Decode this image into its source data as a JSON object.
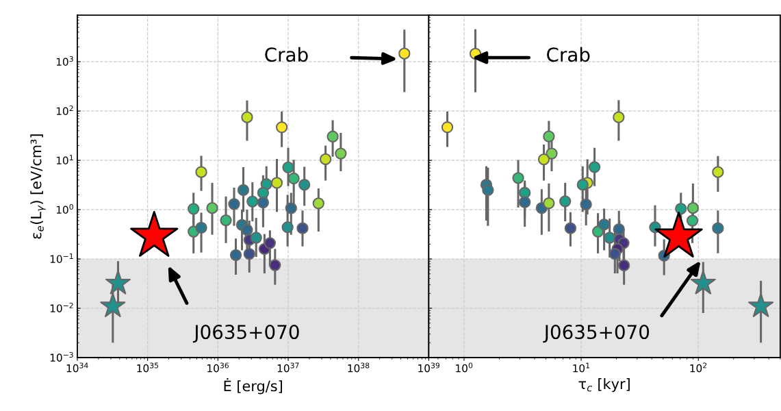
{
  "chart_data": [
    {
      "type": "scatter",
      "xlabel": "Ė [erg/s]",
      "ylabel": "ε$_{e}$(L$_{γ}$) [eV/cm³]",
      "log": "xy",
      "grid": true,
      "xlim": [
        1e+34,
        1e+39
      ],
      "xticks": [
        {
          "value": 1e+34,
          "label": "10$^{34}$"
        },
        {
          "value": 1e+35,
          "label": "10$^{35}$"
        },
        {
          "value": 1e+36,
          "label": "10$^{36}$"
        },
        {
          "value": 1e+37,
          "label": "10$^{37}$"
        },
        {
          "value": 1e+38,
          "label": "10$^{38}$"
        },
        {
          "value": 1e+39,
          "label": "10$^{39}$"
        }
      ],
      "ylim": [
        0.001,
        8800
      ],
      "yticks": [
        {
          "value": 0.001,
          "label": "10$^{−3}$"
        },
        {
          "value": 0.01,
          "label": "10$^{−2}$"
        },
        {
          "value": 0.1,
          "label": "10$^{−1}$"
        },
        {
          "value": 1,
          "label": "10$^{0}$"
        },
        {
          "value": 10,
          "label": "10$^{1}$"
        },
        {
          "value": 100,
          "label": "10$^{2}$"
        },
        {
          "value": 1000,
          "label": "10$^{3}$"
        }
      ],
      "bands": [
        {
          "axis": "y",
          "from": 0.001,
          "to": 0.1,
          "color": "#e5e5e5"
        }
      ],
      "annotations": [
        "Crab",
        "J0635+070"
      ],
      "series": [
        {
          "marker": "circle",
          "x": [
            4.5e+38,
            2.6e+36,
            8.1e+36,
            4.3e+37,
            5.6e+37,
            3.4e+37,
            5.8e+35,
            1e+37,
            1.2e+37,
            1.7e+37,
            6.9e+36,
            4.9e+36,
            4.4e+36,
            2.3e+36,
            2.7e+37,
            4.5e+35,
            4.5e+35,
            5.8e+35,
            8.3e+35,
            1.3e+36,
            1.7e+36,
            2.2e+36,
            2.6e+36,
            2.8e+36,
            3.5e+36,
            3.1e+36,
            4.4e+36,
            1.8e+36,
            2.8e+36,
            4.6e+36,
            5.5e+36,
            6.5e+36,
            9.8e+36,
            1.1e+37,
            1.6e+37
          ],
          "values": [
            1470,
            75,
            47,
            30.5,
            13.8,
            10.6,
            5.8,
            7.2,
            4.3,
            3.2,
            3.5,
            3.3,
            2.2,
            2.5,
            1.34,
            1.04,
            0.36,
            0.43,
            1.08,
            0.61,
            1.3,
            0.49,
            0.39,
            0.245,
            0.27,
            1.47,
            1.4,
            0.12,
            0.127,
            0.16,
            0.21,
            0.075,
            0.44,
            1.07,
            0.42
          ],
          "errors": [
            [
              243,
              4500
            ],
            [
              25,
              164
            ],
            [
              18.6,
              98
            ],
            [
              11.9,
              65
            ],
            [
              6.0,
              36
            ],
            [
              3.9,
              20
            ],
            [
              2.4,
              12.4
            ],
            [
              3.0,
              18
            ],
            [
              1.3,
              10.3
            ],
            [
              1.2,
              7.4
            ],
            [
              0.9,
              10.7
            ],
            [
              1.2,
              7.6
            ],
            [
              0.8,
              5.0
            ],
            [
              0.9,
              7.3
            ],
            [
              0.36,
              2.7
            ],
            [
              0.5,
              2.2
            ],
            [
              0.13,
              0.8
            ],
            [
              0.135,
              0.87
            ],
            [
              0.31,
              3.5
            ],
            [
              0.21,
              1.85
            ],
            [
              0.47,
              2.8
            ],
            [
              0.15,
              1.0
            ],
            [
              0.14,
              1.0
            ],
            [
              0.1,
              0.6
            ],
            [
              0.11,
              0.68
            ],
            [
              0.58,
              3.6
            ],
            [
              0.44,
              3.2
            ],
            [
              0.048,
              0.26
            ],
            [
              0.053,
              0.43
            ],
            [
              0.051,
              0.32
            ],
            [
              0.071,
              0.38
            ],
            [
              0.03,
              0.16
            ],
            [
              0.18,
              2.0
            ],
            [
              0.31,
              2.2
            ],
            [
              0.18,
              0.96
            ]
          ],
          "colors": [
            "#fde725",
            "#c8e020",
            "#fde725",
            "#5ec962",
            "#7ad151",
            "#c8e020",
            "#c8e020",
            "#1fa187",
            "#35b779",
            "#21918c",
            "#c8e020",
            "#1f9e89",
            "#1fa187",
            "#2a788e",
            "#a0da39",
            "#26ad81",
            "#35b779",
            "#2a788e",
            "#5ec962",
            "#35b779",
            "#31688e",
            "#2a788e",
            "#31688e",
            "#443983",
            "#21918c",
            "#1f9e89",
            "#31688e",
            "#31688e",
            "#3b528b",
            "#482878",
            "#46327e",
            "#472d7b",
            "#21918c",
            "#31688e",
            "#3b528b"
          ]
        },
        {
          "marker": "star",
          "color": "#21918c",
          "x": [
            3.8e+34,
            3.2e+34
          ],
          "values": [
            0.032,
            0.011
          ],
          "errors": [
            [
              0.013,
              0.09
            ],
            [
              0.002,
              0.03
            ]
          ]
        },
        {
          "marker": "star",
          "color": "#ff0000",
          "x": [
            1.24e+35
          ],
          "values": [
            0.29
          ]
        }
      ]
    },
    {
      "type": "scatter",
      "xlabel": "τ$_{c}$ [kyr]",
      "log": "xy",
      "grid": true,
      "tick_labels": "x",
      "xlim": [
        0.5,
        500
      ],
      "xticks": [
        {
          "value": 1,
          "label": "10$^{0}$"
        },
        {
          "value": 10,
          "label": "10$^{1}$"
        },
        {
          "value": 100,
          "label": "10$^{2}$"
        }
      ],
      "ylim": [
        0.001,
        8800
      ],
      "yticks": [
        0.001,
        0.01,
        0.1,
        1,
        10,
        100,
        1000
      ],
      "bands": [
        {
          "axis": "y",
          "from": 0.001,
          "to": 0.1,
          "color": "#e5e5e5"
        }
      ],
      "annotations": [
        "Crab",
        "J0635+070"
      ],
      "series": [
        {
          "marker": "circle",
          "x": [
            1.25,
            0.72,
            20.9,
            5.3,
            5.6,
            4.8,
            147,
            13.0,
            2.9,
            11.3,
            10.3,
            1.55,
            1.6,
            3.3,
            3.3,
            4.6,
            5.3,
            7.3,
            11,
            8.1,
            13.9,
            15.7,
            17.5,
            21,
            21.2,
            23,
            20.4,
            19.4,
            23.2,
            42.7,
            51,
            71,
            90,
            89,
            147
          ],
          "values": [
            1460,
            47,
            75,
            30.6,
            13.8,
            10.5,
            5.8,
            7.3,
            4.4,
            3.5,
            3.2,
            3.2,
            2.5,
            2.2,
            1.42,
            1.08,
            1.35,
            1.48,
            1.28,
            0.42,
            0.36,
            0.5,
            0.27,
            0.4,
            0.25,
            0.21,
            0.16,
            0.127,
            0.074,
            0.44,
            0.117,
            1.05,
            1.08,
            0.6,
            0.42
          ],
          "errors": [
            [
              240,
              4570
            ],
            [
              18.8,
              98
            ],
            [
              25,
              166
            ],
            [
              11,
              63
            ],
            [
              6.0,
              30
            ],
            [
              3.9,
              21
            ],
            [
              2.3,
              12.3
            ],
            [
              3.0,
              18
            ],
            [
              1.1,
              10.2
            ],
            [
              0.8,
              10.5
            ],
            [
              0.9,
              7.6
            ],
            [
              0.6,
              7.6
            ],
            [
              0.47,
              7.1
            ],
            [
              0.68,
              3.9
            ],
            [
              0.45,
              3.5
            ],
            [
              0.31,
              2.6
            ],
            [
              0.36,
              3.4
            ],
            [
              0.58,
              3.5
            ],
            [
              0.48,
              4.0
            ],
            [
              0.18,
              0.89
            ],
            [
              0.13,
              0.85
            ],
            [
              0.15,
              1.05
            ],
            [
              0.107,
              0.66
            ],
            [
              0.15,
              0.95
            ],
            [
              0.09,
              0.6
            ],
            [
              0.07,
              0.4
            ],
            [
              0.051,
              0.32
            ],
            [
              0.051,
              0.4
            ],
            [
              0.03,
              0.166
            ],
            [
              0.18,
              1.23
            ],
            [
              0.047,
              0.25
            ],
            [
              0.4,
              2.2
            ],
            [
              0.5,
              3.4
            ],
            [
              0.21,
              1.5
            ],
            [
              0.13,
              0.96
            ]
          ],
          "colors": [
            "#fde725",
            "#fde725",
            "#c8e020",
            "#5ec962",
            "#7ad151",
            "#c8e020",
            "#c8e020",
            "#1fa187",
            "#35b779",
            "#c8e020",
            "#1fa187",
            "#2a788e",
            "#2a788e",
            "#1fa187",
            "#31688e",
            "#31688e",
            "#a0da39",
            "#1f9e89",
            "#31688e",
            "#3b528b",
            "#35b779",
            "#2a788e",
            "#21918c",
            "#31688e",
            "#443983",
            "#46327e",
            "#482878",
            "#3b528b",
            "#472d7b",
            "#21918c",
            "#31688e",
            "#1fa187",
            "#5ec962",
            "#35b779",
            "#2a788e"
          ]
        },
        {
          "marker": "star",
          "color": "#21918c",
          "x": [
            110,
            342
          ],
          "values": [
            0.032,
            0.011
          ],
          "errors": [
            [
              0.008,
              0.087
            ],
            [
              0.002,
              0.036
            ]
          ]
        },
        {
          "marker": "star",
          "color": "#ff0000",
          "x": [
            68
          ],
          "values": [
            0.28
          ]
        }
      ]
    }
  ]
}
